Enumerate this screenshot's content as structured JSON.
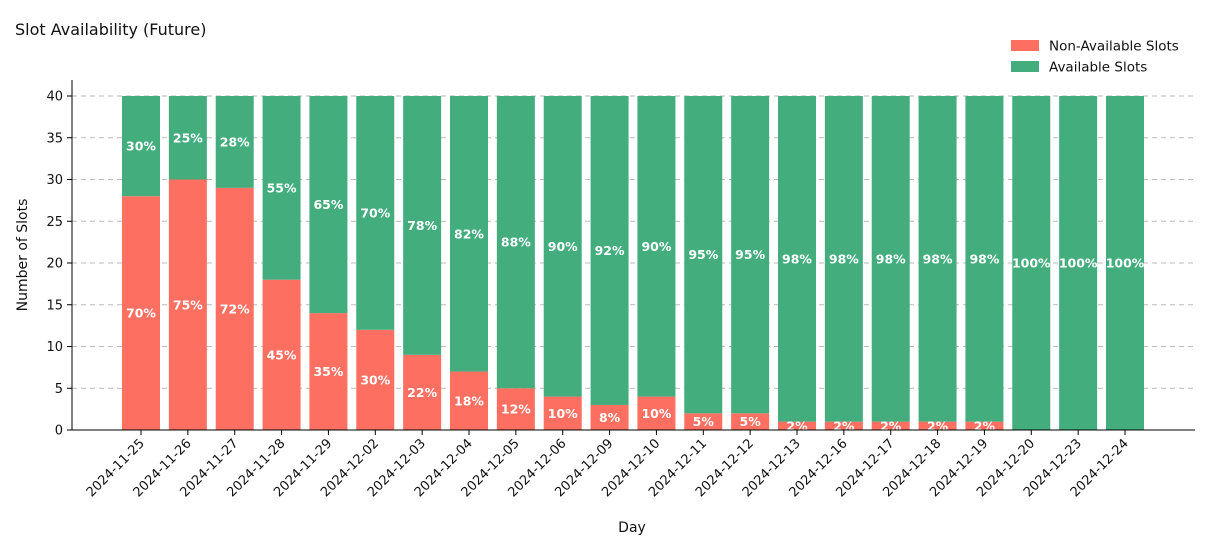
{
  "chart_data": {
    "type": "bar",
    "stacked": true,
    "title": "Slot Availability (Future)",
    "xlabel": "Day",
    "ylabel": "Number of Slots",
    "ylim": [
      0,
      42
    ],
    "yticks": [
      0,
      5,
      10,
      15,
      20,
      25,
      30,
      35,
      40
    ],
    "grid": true,
    "legend_position": "top-right",
    "categories": [
      "2024-11-25",
      "2024-11-26",
      "2024-11-27",
      "2024-11-28",
      "2024-11-29",
      "2024-12-02",
      "2024-12-03",
      "2024-12-04",
      "2024-12-05",
      "2024-12-06",
      "2024-12-09",
      "2024-12-10",
      "2024-12-11",
      "2024-12-12",
      "2024-12-13",
      "2024-12-16",
      "2024-12-17",
      "2024-12-18",
      "2024-12-19",
      "2024-12-20",
      "2024-12-23",
      "2024-12-24"
    ],
    "series": [
      {
        "name": "Non-Available Slots",
        "color": "#fd6f61",
        "values": [
          28,
          30,
          29,
          18,
          14,
          12,
          9,
          7,
          5,
          4,
          3,
          4,
          2,
          2,
          1,
          1,
          1,
          1,
          1,
          0,
          0,
          0
        ],
        "labels": [
          "70%",
          "75%",
          "72%",
          "45%",
          "35%",
          "30%",
          "22%",
          "18%",
          "12%",
          "10%",
          "8%",
          "10%",
          "5%",
          "5%",
          "2%",
          "2%",
          "2%",
          "2%",
          "2%",
          "",
          "",
          ""
        ]
      },
      {
        "name": "Available Slots",
        "color": "#43ad7d",
        "values": [
          12,
          10,
          11,
          22,
          26,
          28,
          31,
          33,
          35,
          36,
          37,
          36,
          38,
          38,
          39,
          39,
          39,
          39,
          39,
          40,
          40,
          40
        ],
        "labels": [
          "30%",
          "25%",
          "28%",
          "55%",
          "65%",
          "70%",
          "78%",
          "82%",
          "88%",
          "90%",
          "92%",
          "90%",
          "95%",
          "95%",
          "98%",
          "98%",
          "98%",
          "98%",
          "98%",
          "100%",
          "100%",
          "100%"
        ]
      }
    ]
  }
}
